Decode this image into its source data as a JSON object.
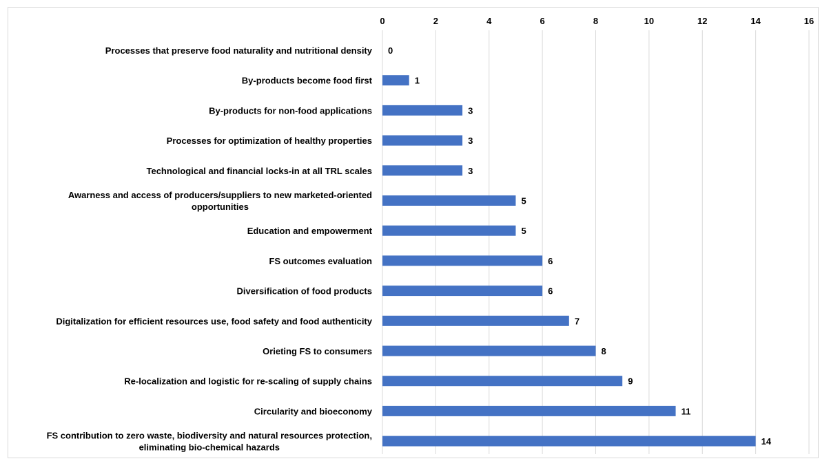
{
  "chart_data": {
    "type": "bar",
    "orientation": "horizontal",
    "title": "",
    "xlabel": "",
    "ylabel": "",
    "xlim": [
      0,
      16
    ],
    "x_ticks": [
      0,
      2,
      4,
      6,
      8,
      10,
      12,
      14,
      16
    ],
    "x_axis_position": "top",
    "grid": true,
    "data_labels": true,
    "bar_color": "#4472c4",
    "categories": [
      [
        "Processes that preserve food naturality and nutritional density"
      ],
      [
        "By-products become food first"
      ],
      [
        "By-products for non-food applications"
      ],
      [
        "Processes for optimization of healthy properties"
      ],
      [
        "Technological and financial locks-in at all TRL scales"
      ],
      [
        "Awarness and access of producers/suppliers to new marketed-oriented",
        "opportunities"
      ],
      [
        "Education and empowerment"
      ],
      [
        "FS outcomes evaluation"
      ],
      [
        "Diversification of food products"
      ],
      [
        "Digitalization for efficient resources use, food safety and food authenticity"
      ],
      [
        "Orieting FS to consumers"
      ],
      [
        "Re-localization and logistic for re-scaling of supply chains"
      ],
      [
        "Circularity and bioeconomy"
      ],
      [
        "FS contribution to zero waste, biodiversity and natural resources protection,",
        "eliminating bio-chemical hazards"
      ]
    ],
    "values": [
      0,
      1,
      3,
      3,
      3,
      5,
      5,
      6,
      6,
      7,
      8,
      9,
      11,
      14
    ]
  }
}
